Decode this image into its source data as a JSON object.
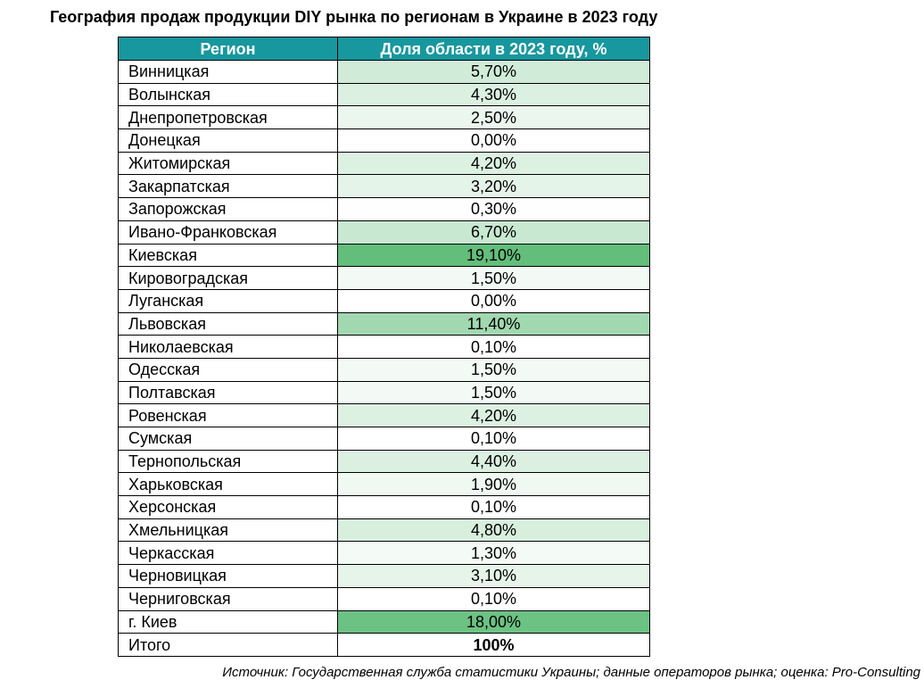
{
  "title": "География продаж продукции DIY рынка по регионам в Украине в 2023 году",
  "table": {
    "headers": [
      "Регион",
      "Доля области в 2023 году, %"
    ],
    "rows": [
      {
        "region": "Винницкая",
        "share": "5,70%",
        "value": 5.7
      },
      {
        "region": "Волынская",
        "share": "4,30%",
        "value": 4.3
      },
      {
        "region": "Днепропетровская",
        "share": "2,50%",
        "value": 2.5
      },
      {
        "region": "Донецкая",
        "share": "0,00%",
        "value": 0.0
      },
      {
        "region": "Житомирская",
        "share": "4,20%",
        "value": 4.2
      },
      {
        "region": "Закарпатская",
        "share": "3,20%",
        "value": 3.2
      },
      {
        "region": "Запорожская",
        "share": "0,30%",
        "value": 0.3
      },
      {
        "region": "Ивано-Франковская",
        "share": "6,70%",
        "value": 6.7
      },
      {
        "region": "Киевская",
        "share": "19,10%",
        "value": 19.1
      },
      {
        "region": "Кировоградская",
        "share": "1,50%",
        "value": 1.5
      },
      {
        "region": "Луганская",
        "share": "0,00%",
        "value": 0.0
      },
      {
        "region": "Львовская",
        "share": "11,40%",
        "value": 11.4
      },
      {
        "region": "Николаевская",
        "share": "0,10%",
        "value": 0.1
      },
      {
        "region": "Одесская",
        "share": "1,50%",
        "value": 1.5
      },
      {
        "region": "Полтавская",
        "share": "1,50%",
        "value": 1.5
      },
      {
        "region": "Ровенская",
        "share": "4,20%",
        "value": 4.2
      },
      {
        "region": "Сумская",
        "share": "0,10%",
        "value": 0.1
      },
      {
        "region": "Тернопольская",
        "share": "4,40%",
        "value": 4.4
      },
      {
        "region": "Харьковская",
        "share": "1,90%",
        "value": 1.9
      },
      {
        "region": "Херсонская",
        "share": "0,10%",
        "value": 0.1
      },
      {
        "region": "Хмельницкая",
        "share": "4,80%",
        "value": 4.8
      },
      {
        "region": "Черкасская",
        "share": "1,30%",
        "value": 1.3
      },
      {
        "region": "Черновицкая",
        "share": "3,10%",
        "value": 3.1
      },
      {
        "region": "Черниговская",
        "share": "0,10%",
        "value": 0.1
      },
      {
        "region": "г. Киев",
        "share": "18,00%",
        "value": 18.0
      }
    ],
    "total": {
      "region": "Итого",
      "share": "100%"
    }
  },
  "colors": {
    "header_bg": "#17979e",
    "header_text": "#ffffff",
    "heat_low": "#ffffff",
    "heat_high": "#63be7b"
  },
  "source": "Источник: Государственная служба статистики Украины; данные операторов рынка; оценка: Pro-Consulting"
}
